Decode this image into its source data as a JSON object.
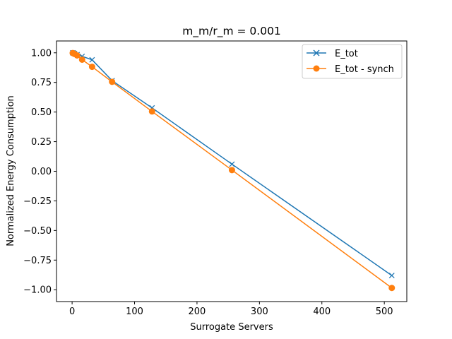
{
  "chart_data": {
    "type": "line",
    "title": "m_m/r_m = 0.001",
    "xlabel": "Surrogate Servers",
    "ylabel": "Normalized Energy Consumption",
    "xlim": [
      -25,
      536
    ],
    "ylim": [
      -1.1,
      1.1
    ],
    "xticks": [
      0,
      100,
      200,
      300,
      400,
      500
    ],
    "xtick_labels": [
      "0",
      "100",
      "200",
      "300",
      "400",
      "500"
    ],
    "yticks": [
      1.0,
      0.75,
      0.5,
      0.25,
      0.0,
      -0.25,
      -0.5,
      -0.75,
      -1.0
    ],
    "ytick_labels": [
      "1.00",
      "0.75",
      "0.50",
      "0.25",
      "0.00",
      "−0.25",
      "−0.50",
      "−0.75",
      "−1.00"
    ],
    "grid": false,
    "legend_position": "top-right",
    "series": [
      {
        "name": "E_tot",
        "color": "#1f77b4",
        "marker": "x",
        "x": [
          1,
          2,
          4,
          8,
          16,
          32,
          64,
          128,
          256,
          512
        ],
        "y": [
          1.0,
          0.998,
          0.994,
          0.985,
          0.97,
          0.941,
          0.765,
          0.535,
          0.06,
          -0.88
        ]
      },
      {
        "name": "E_tot - synch",
        "color": "#ff7f0e",
        "marker": "o",
        "x": [
          1,
          2,
          4,
          8,
          16,
          32,
          64,
          128,
          256,
          512
        ],
        "y": [
          0.998,
          0.996,
          0.99,
          0.978,
          0.942,
          0.882,
          0.755,
          0.505,
          0.01,
          -0.985
        ]
      }
    ]
  }
}
